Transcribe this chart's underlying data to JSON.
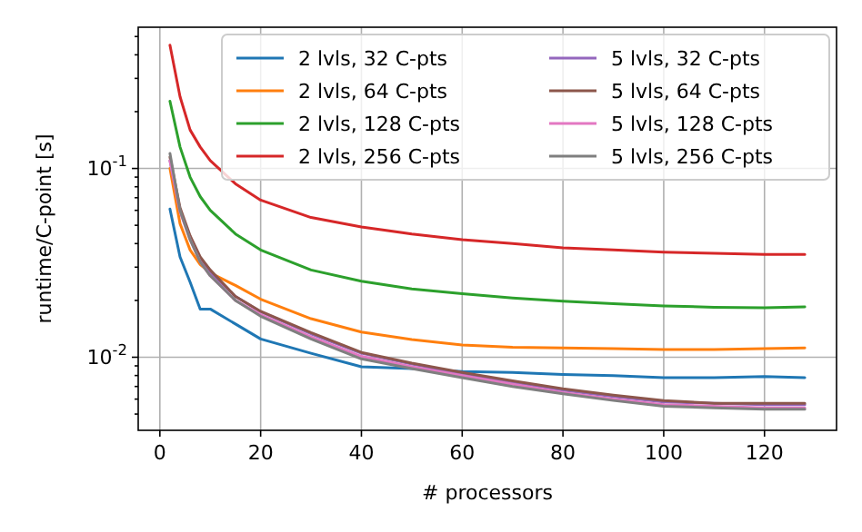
{
  "chart_data": {
    "type": "line",
    "xlabel": "# processors",
    "ylabel": "runtime/C-point [s]",
    "log": "y",
    "grid": true,
    "legend": "top right",
    "marker": "none",
    "line_style": "solid",
    "x": [
      2,
      4,
      6,
      8,
      10,
      15,
      20,
      30,
      40,
      50,
      60,
      70,
      80,
      90,
      100,
      110,
      120,
      128
    ],
    "xlim": [
      -4.3,
      134.3
    ],
    "xticks": [
      0,
      20,
      40,
      60,
      80,
      100,
      120
    ],
    "ylim": [
      0.0041,
      0.56
    ],
    "yticks": [
      {
        "value": 0.005,
        "label": null
      },
      {
        "value": 0.006,
        "label": null
      },
      {
        "value": 0.007,
        "label": null
      },
      {
        "value": 0.008,
        "label": null
      },
      {
        "value": 0.009,
        "label": null
      },
      {
        "value": 0.01,
        "label": "10$^{-2}$"
      },
      {
        "value": 0.02,
        "label": null
      },
      {
        "value": 0.03,
        "label": null
      },
      {
        "value": 0.04,
        "label": null
      },
      {
        "value": 0.05,
        "label": null
      },
      {
        "value": 0.06,
        "label": null
      },
      {
        "value": 0.07,
        "label": null
      },
      {
        "value": 0.08,
        "label": null
      },
      {
        "value": 0.09,
        "label": null
      },
      {
        "value": 0.1,
        "label": "10$^{-1}$"
      },
      {
        "value": 0.2,
        "label": null
      },
      {
        "value": 0.3,
        "label": null
      },
      {
        "value": 0.4,
        "label": null
      },
      {
        "value": 0.5,
        "label": null
      }
    ],
    "series": [
      {
        "name": "2 lvls, 32 C-pts",
        "color": "#1f77b4",
        "values": [
          0.061,
          0.034,
          0.025,
          0.018,
          0.018,
          0.015,
          0.0125,
          0.0105,
          0.0089,
          0.0087,
          0.0084,
          0.0083,
          0.0081,
          0.008,
          0.0078,
          0.0078,
          0.0079,
          0.0078
        ]
      },
      {
        "name": "2 lvls, 64 C-pts",
        "color": "#ff7f0e",
        "values": [
          0.1,
          0.051,
          0.037,
          0.031,
          0.028,
          0.024,
          0.0203,
          0.016,
          0.0136,
          0.0124,
          0.0116,
          0.0113,
          0.0112,
          0.0111,
          0.011,
          0.011,
          0.0111,
          0.0112
        ]
      },
      {
        "name": "2 lvls, 128 C-pts",
        "color": "#2ca02c",
        "values": [
          0.227,
          0.13,
          0.09,
          0.071,
          0.06,
          0.045,
          0.037,
          0.029,
          0.0253,
          0.023,
          0.0217,
          0.0206,
          0.0198,
          0.0192,
          0.0187,
          0.0184,
          0.0183,
          0.0185
        ]
      },
      {
        "name": "2 lvls, 256 C-pts",
        "color": "#d62728",
        "values": [
          0.45,
          0.24,
          0.16,
          0.13,
          0.11,
          0.083,
          0.068,
          0.055,
          0.049,
          0.045,
          0.042,
          0.04,
          0.038,
          0.037,
          0.036,
          0.0355,
          0.035,
          0.035
        ]
      },
      {
        "name": "5 lvls, 32 C-pts",
        "color": "#9467bd",
        "values": [
          0.11,
          0.06,
          0.043,
          0.033,
          0.028,
          0.021,
          0.0174,
          0.0133,
          0.0105,
          0.0092,
          0.0082,
          0.0074,
          0.0067,
          0.0062,
          0.0058,
          0.0057,
          0.0056,
          0.0056
        ]
      },
      {
        "name": "5 lvls, 64 C-pts",
        "color": "#8c564b",
        "values": [
          0.115,
          0.062,
          0.044,
          0.034,
          0.029,
          0.021,
          0.0175,
          0.0135,
          0.0106,
          0.0093,
          0.0083,
          0.0075,
          0.0068,
          0.0063,
          0.0059,
          0.0057,
          0.0057,
          0.0057
        ]
      },
      {
        "name": "5 lvls, 128 C-pts",
        "color": "#e377c2",
        "values": [
          0.11,
          0.059,
          0.042,
          0.032,
          0.027,
          0.02,
          0.0168,
          0.0128,
          0.0101,
          0.0089,
          0.008,
          0.0072,
          0.0065,
          0.006,
          0.0056,
          0.0055,
          0.0054,
          0.0054
        ]
      },
      {
        "name": "5 lvls, 256 C-pts",
        "color": "#7f7f7f",
        "values": [
          0.12,
          0.06,
          0.042,
          0.032,
          0.027,
          0.02,
          0.0165,
          0.0125,
          0.0098,
          0.0087,
          0.0078,
          0.007,
          0.0064,
          0.0059,
          0.0055,
          0.0054,
          0.0053,
          0.0053
        ]
      }
    ]
  }
}
